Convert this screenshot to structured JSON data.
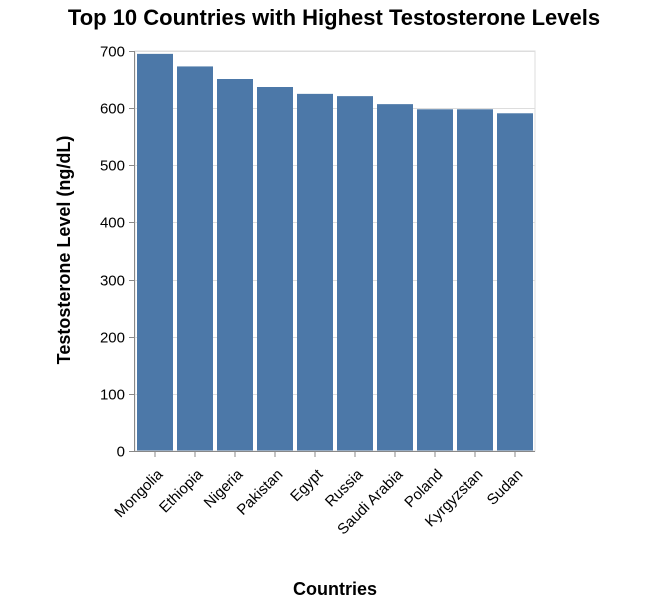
{
  "chart_data": {
    "type": "bar",
    "title": "Top 10 Countries with Highest Testosterone Levels",
    "xlabel": "Countries",
    "ylabel": "Testosterone Level (ng/dL)",
    "categories": [
      "Mongolia",
      "Ethiopia",
      "Nigeria",
      "Pakistan",
      "Egypt",
      "Russia",
      "Saudi Arabia",
      "Poland",
      "Kyrgyzstan",
      "Sudan"
    ],
    "values": [
      695,
      673,
      651,
      637,
      625,
      621,
      607,
      598,
      598,
      591
    ],
    "ylim": [
      0,
      700
    ],
    "yticks": [
      0,
      100,
      200,
      300,
      400,
      500,
      600,
      700
    ],
    "grid": true,
    "bar_color": "#4c78a8"
  }
}
